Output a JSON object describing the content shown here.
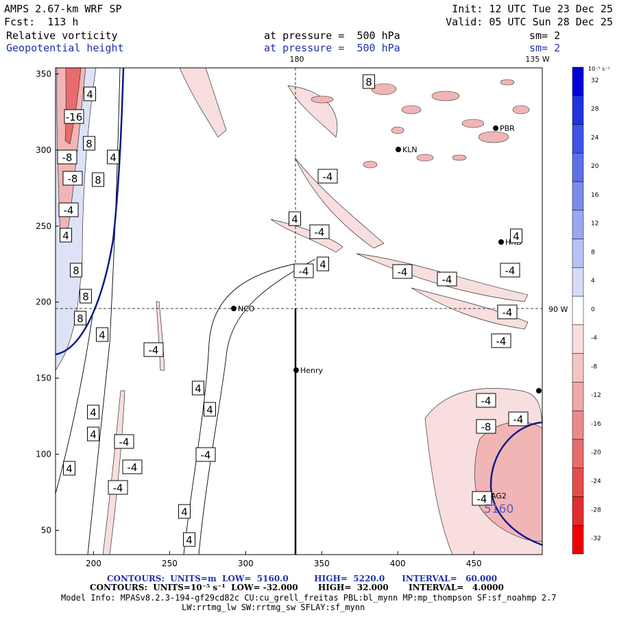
{
  "header": {
    "model": "AMPS 2.67-km WRF SP",
    "init": "Init: 12 UTC Tue 23 Dec 25",
    "fcst": "Fcst:  113 h",
    "valid": "Valid: 05 UTC Sun 28 Dec 25",
    "field1": {
      "name": "Relative vorticity",
      "level": "at pressure =  500 hPa",
      "sm": "sm= 2"
    },
    "field2": {
      "name": "Geopotential height",
      "level": "at pressure =  500 hPa",
      "sm": "sm= 2"
    }
  },
  "map": {
    "lon_labels": [
      "180",
      "135 W",
      "90 W"
    ],
    "x_ticks": [
      "200",
      "250",
      "300",
      "350",
      "400",
      "450"
    ],
    "y_ticks": [
      "350",
      "300",
      "250",
      "200",
      "150",
      "100",
      "50"
    ],
    "stations": [
      "NCO",
      "Henry",
      "KLN",
      "PBR",
      "HRD",
      "AG2"
    ],
    "height_label": "5160",
    "contour_labels": [
      "4",
      "-16",
      "8",
      "4",
      "-8",
      "8",
      "-8",
      "-4",
      "4",
      "8",
      "8",
      "8",
      "4",
      "-4",
      "-4",
      "4",
      "-4",
      "4",
      "-4",
      "4",
      "4",
      "4",
      "4",
      "-4",
      "-4",
      "-4",
      "4",
      "-4",
      "4",
      "4",
      "-4",
      "-4",
      "-4",
      "-4",
      "-4",
      "-4",
      "-8",
      "-4",
      "4",
      "-4",
      "8"
    ]
  },
  "colorbar": {
    "unit": "10⁻⁵ s⁻¹",
    "levels": [
      "32",
      "28",
      "24",
      "20",
      "16",
      "12",
      "8",
      "4",
      "0",
      "-4",
      "-8",
      "-12",
      "-16",
      "-20",
      "-24",
      "-28",
      "-32"
    ],
    "colors": [
      "#0000d8",
      "#1f33e0",
      "#3f52e6",
      "#5d70ea",
      "#7b8cee",
      "#9aa8f2",
      "#b8c2f5",
      "#d6dcf8",
      "#ffffff",
      "#f8dede",
      "#f4c4c4",
      "#f0a8a8",
      "#ec8a8a",
      "#e86c6c",
      "#e44c4c",
      "#e02c2c",
      "#f00000"
    ]
  },
  "footer": {
    "line1": "CONTOURS:  UNITS=m  LOW=  5160.0         HIGH=  5220.0      INTERVAL=   60.000",
    "line2": "CONTOURS:  UNITS=10⁻⁵ s⁻¹  LOW= -32.000       HIGH=  32.000       INTERVAL=   4.0000",
    "line3": "Model Info: MPASv8.2.3-194-gf29cd82c CU:cu_grell_freitas PBL:bl_mynn MP:mp_thompson SF:sf_noahmp 2.7",
    "line4": "LW:rrtmg_lw SW:rrtmg_sw SFLAY:sf_mynn"
  }
}
